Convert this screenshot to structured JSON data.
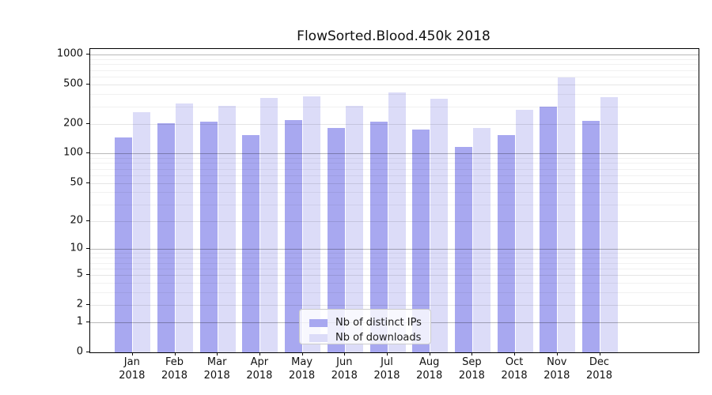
{
  "chart_data": {
    "type": "bar",
    "title": "FlowSorted.Blood.450k 2018",
    "categories": [
      "Jan",
      "Feb",
      "Mar",
      "Apr",
      "May",
      "Jun",
      "Jul",
      "Aug",
      "Sep",
      "Oct",
      "Nov",
      "Dec"
    ],
    "year": "2018",
    "series": [
      {
        "name": "Nb of distinct IPs",
        "color": "#a8a8f0",
        "values": [
          146,
          202,
          212,
          155,
          219,
          182,
          212,
          175,
          116,
          155,
          297,
          215
        ]
      },
      {
        "name": "Nb of downloads",
        "color": "#dcdcf8",
        "values": [
          262,
          320,
          303,
          366,
          378,
          305,
          414,
          362,
          181,
          275,
          587,
          371
        ]
      }
    ],
    "y_axis": {
      "scale": "log10(value+1)",
      "major_ticks": [
        0,
        1,
        2,
        5,
        10,
        20,
        50,
        100,
        200,
        500,
        1000
      ],
      "minor_ticks": [
        3,
        4,
        6,
        7,
        8,
        9,
        30,
        40,
        60,
        70,
        80,
        90,
        300,
        400,
        600,
        700,
        800,
        900
      ],
      "emphasized_ticks": [
        1,
        10,
        100,
        1000
      ],
      "max": 1140
    },
    "grid": true,
    "legend_position": "lower center inside"
  },
  "legend": {
    "items": [
      {
        "label": "Nb of distinct IPs",
        "color": "#a8a8f0"
      },
      {
        "label": "Nb of downloads",
        "color": "#dcdcf8"
      }
    ]
  },
  "colors": {
    "bar_dark": "#a8a8f0",
    "bar_light": "#dcdcf8",
    "grid_power10": "rgba(0,0,0,0.28)",
    "grid_major": "rgba(0,0,0,0.10)",
    "grid_minor": "rgba(0,0,0,0.055)",
    "spine": "#000000",
    "text": "#111111"
  }
}
